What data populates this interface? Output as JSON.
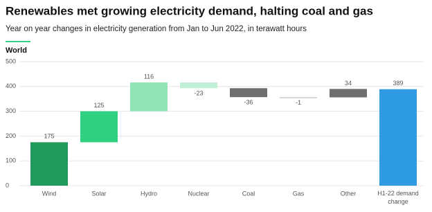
{
  "chart_data": {
    "type": "waterfall",
    "title": "Renewables met growing electricity demand, halting coal and gas",
    "subtitle": "Year on year changes in electricity generation from Jan to Jun 2022, in terawatt hours",
    "panel_title": "World",
    "categories": [
      "Wind",
      "Solar",
      "Hydro",
      "Nuclear",
      "Coal",
      "Gas",
      "Other",
      "H1-22 demand change"
    ],
    "values": [
      175,
      125,
      116,
      -23,
      -36,
      -1,
      34,
      389
    ],
    "colors": [
      "#1f9a5b",
      "#2fd07f",
      "#8fe5b3",
      "#c1efd3",
      "#6e6e6e",
      "#c9c9c9",
      "#6e6e6e",
      "#2f9be3"
    ],
    "ylim": [
      0,
      500
    ],
    "yticks": [
      0,
      100,
      200,
      300,
      400,
      500
    ],
    "grid": true
  }
}
